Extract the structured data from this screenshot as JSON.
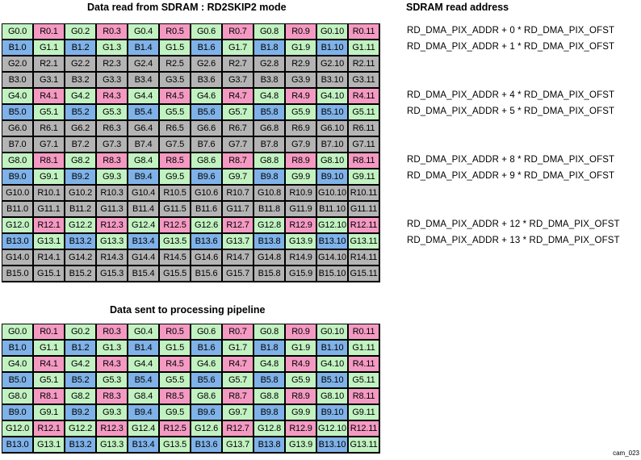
{
  "titles": {
    "top": "Data read from SDRAM : RD2SKIP2 mode",
    "address": "SDRAM read address",
    "bottom": "Data sent to processing pipeline"
  },
  "colors": {
    "green": "#c2f2c2",
    "red": "#f49ac2",
    "blue": "#7fb2e8",
    "gray": "#b4b4b4"
  },
  "top_rows": [
    0,
    1,
    2,
    3,
    4,
    5,
    6,
    7,
    8,
    9,
    10,
    11,
    12,
    13,
    14,
    15
  ],
  "bottom_rows": [
    0,
    1,
    4,
    5,
    8,
    9,
    12,
    13
  ],
  "skipped_rows": [
    2,
    3,
    6,
    7,
    10,
    11,
    14,
    15
  ],
  "columns": 12,
  "addresses": [
    {
      "row": 0,
      "text": "RD_DMA_PIX_ADDR + 0 * RD_DMA_PIX_OFST"
    },
    {
      "row": 1,
      "text": "RD_DMA_PIX_ADDR + 1 * RD_DMA_PIX_OFST"
    },
    {
      "row": 4,
      "text": "RD_DMA_PIX_ADDR + 4 * RD_DMA_PIX_OFST"
    },
    {
      "row": 5,
      "text": "RD_DMA_PIX_ADDR + 5 * RD_DMA_PIX_OFST"
    },
    {
      "row": 8,
      "text": "RD_DMA_PIX_ADDR + 8 * RD_DMA_PIX_OFST"
    },
    {
      "row": 9,
      "text": "RD_DMA_PIX_ADDR + 9 * RD_DMA_PIX_OFST"
    },
    {
      "row": 12,
      "text": "RD_DMA_PIX_ADDR + 12 * RD_DMA_PIX_OFST"
    },
    {
      "row": 13,
      "text": "RD_DMA_PIX_ADDR + 13 * RD_DMA_PIX_OFST"
    }
  ],
  "footnote": "cam_023"
}
